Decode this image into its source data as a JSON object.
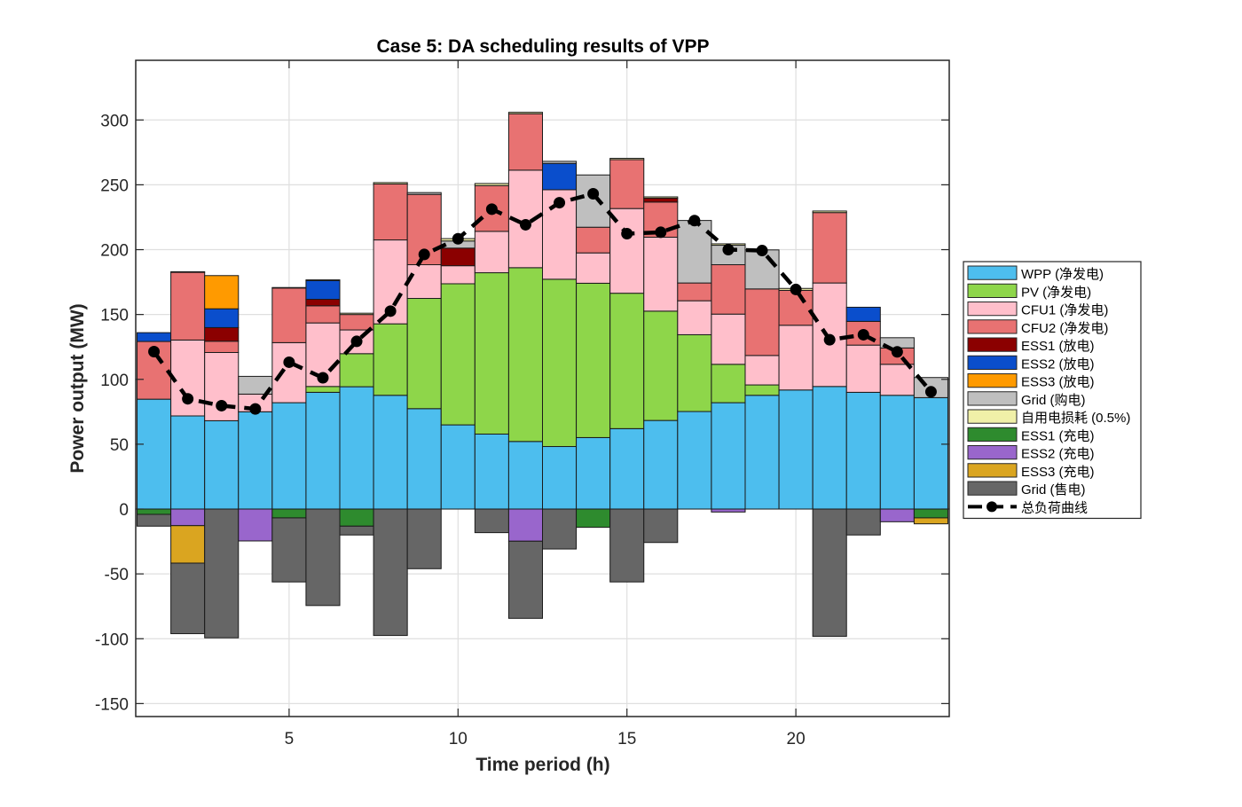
{
  "chart_data": {
    "type": "bar",
    "stacked": true,
    "title": "Case 5: DA scheduling results of VPP",
    "xlabel": "Time period (h)",
    "ylabel": "Power output (MW)",
    "xlim": [
      0.46,
      24.54
    ],
    "ylim": [
      -160,
      346
    ],
    "xticks": [
      5,
      10,
      15,
      20
    ],
    "yticks": [
      -150,
      -100,
      -50,
      0,
      50,
      100,
      150,
      200,
      250,
      300
    ],
    "grid": true,
    "legend_position": "outside-right",
    "categories": [
      1,
      2,
      3,
      4,
      5,
      6,
      7,
      8,
      9,
      10,
      11,
      12,
      13,
      14,
      15,
      16,
      17,
      18,
      19,
      20,
      21,
      22,
      23,
      24
    ],
    "series": [
      {
        "name": "WPP (净发电)",
        "color": "#4DBEEE",
        "stack": "positive",
        "values": [
          84.7,
          71.8,
          68.1,
          75.0,
          82.0,
          90.0,
          94.3,
          87.7,
          77.4,
          64.9,
          57.8,
          52.1,
          48.2,
          55.1,
          62.0,
          68.3,
          75.2,
          82.0,
          87.7,
          91.8,
          94.5,
          90.0,
          87.7,
          85.9
        ]
      },
      {
        "name": "PV (净发电)",
        "color": "#8ED64A",
        "stack": "positive",
        "values": [
          0,
          0,
          0,
          0,
          0,
          4.5,
          25.5,
          55.1,
          85.0,
          108.8,
          124.4,
          134.0,
          129.0,
          119.0,
          104.4,
          84.3,
          59.2,
          29.6,
          8.0,
          0,
          0,
          0,
          0,
          0
        ]
      },
      {
        "name": "CFU1 (净发电)",
        "color": "#FFBFCB",
        "stack": "positive",
        "values": [
          0,
          58.5,
          52.6,
          13.6,
          46.3,
          49.0,
          18.3,
          64.7,
          26.0,
          13.9,
          31.9,
          75.2,
          69.0,
          23.4,
          65.3,
          57.0,
          26.2,
          38.7,
          22.7,
          49.9,
          79.8,
          36.4,
          23.9,
          0
        ]
      },
      {
        "name": "CFU2 (净发电)",
        "color": "#E87272",
        "stack": "positive",
        "values": [
          44.5,
          52.2,
          8.7,
          0,
          42.1,
          13.2,
          11.9,
          43.1,
          54.2,
          0,
          35.3,
          43.5,
          0,
          19.8,
          37.7,
          27.1,
          13.7,
          38.1,
          51.3,
          26.9,
          54.3,
          18.3,
          12.6,
          0
        ]
      },
      {
        "name": "ESS1 (放电)",
        "color": "#8B0000",
        "stack": "positive",
        "values": [
          0,
          0,
          10.5,
          0,
          0,
          5.0,
          0,
          0,
          0,
          13.6,
          0,
          0,
          0,
          0,
          0,
          3.0,
          0,
          0,
          0,
          0,
          0,
          0,
          0,
          0
        ]
      },
      {
        "name": "ESS2 (放电)",
        "color": "#0A4ECC",
        "stack": "positive",
        "values": [
          6.8,
          0,
          14.5,
          0,
          0,
          14.4,
          0,
          0,
          0,
          0,
          0,
          0,
          20.3,
          0,
          0,
          0,
          0,
          0,
          0,
          0,
          0,
          10.9,
          0,
          0
        ]
      },
      {
        "name": "ESS3 (放电)",
        "color": "#FF9A00",
        "stack": "positive",
        "values": [
          0,
          0,
          25.6,
          0,
          0,
          0,
          0,
          0,
          0,
          0,
          0,
          0,
          0,
          0,
          0,
          0,
          0,
          0,
          0,
          0,
          0,
          0,
          0,
          0
        ]
      },
      {
        "name": "Grid (购电)",
        "color": "#BFBFBF",
        "stack": "positive",
        "values": [
          0,
          0,
          0,
          13.7,
          0,
          0,
          0,
          0,
          1.4,
          5.5,
          0,
          0,
          1.6,
          40.3,
          0,
          0,
          48.2,
          15.0,
          30.1,
          0,
          0,
          0,
          7.9,
          15.5
        ]
      },
      {
        "name": "自用电损耗 (0.5%)",
        "color": "#F0F0A8",
        "stack": "positive",
        "values": [
          0,
          0.5,
          0,
          0,
          0.4,
          0.6,
          1.0,
          1.1,
          0,
          1.8,
          1.6,
          1.1,
          0,
          0,
          1.0,
          1.0,
          0,
          1.1,
          0,
          1.5,
          1.2,
          0,
          0,
          0
        ]
      },
      {
        "name": "ESS1 (充电)",
        "color": "#2E8B2E",
        "stack": "negative",
        "values": [
          -4.1,
          0,
          0,
          0,
          -6.8,
          0,
          -13.2,
          0,
          0,
          0,
          0,
          0,
          0,
          -14.1,
          0,
          0,
          0,
          0,
          0,
          0,
          0,
          0,
          0,
          -6.8
        ]
      },
      {
        "name": "ESS2 (充电)",
        "color": "#9966CC",
        "stack": "negative",
        "values": [
          0,
          -12.8,
          0,
          -24.6,
          0,
          0,
          0,
          0,
          0,
          0,
          0,
          -24.8,
          0,
          0,
          0,
          0,
          0,
          -2.3,
          0,
          0,
          0,
          0,
          -9.8,
          0
        ]
      },
      {
        "name": "ESS3 (充电)",
        "color": "#DAA520",
        "stack": "negative",
        "values": [
          0,
          -28.9,
          0,
          0,
          0,
          0,
          0,
          0,
          0,
          0,
          0,
          0,
          0,
          0,
          0,
          0,
          0,
          0,
          0,
          0,
          0,
          0,
          0,
          -4.6
        ]
      },
      {
        "name": "Grid (售电)",
        "color": "#666666",
        "stack": "negative",
        "values": [
          -9.1,
          -54.4,
          -99.3,
          0,
          -49.4,
          -74.4,
          -6.8,
          -97.5,
          -46.0,
          0,
          -18.2,
          -59.5,
          -30.8,
          0,
          -56.2,
          -25.8,
          0,
          0,
          0,
          0,
          -98.2,
          -20.0,
          0,
          0
        ]
      }
    ],
    "line": {
      "name": "总负荷曲线",
      "color": "#000000",
      "style": "dashed-with-markers",
      "values": [
        121.4,
        85.0,
        79.7,
        77.2,
        113.2,
        101.2,
        129.3,
        152.6,
        196.3,
        208.4,
        231.2,
        219.2,
        236.2,
        243.1,
        212.3,
        213.4,
        222.4,
        200.0,
        199.3,
        169.3,
        130.5,
        134.4,
        121.2,
        90.4
      ]
    }
  }
}
